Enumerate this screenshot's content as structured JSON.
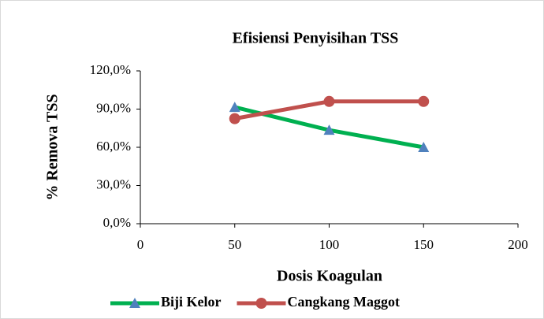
{
  "chart_data": {
    "type": "line",
    "title": "Efisiensi Penyisihan TSS",
    "xlabel": "Dosis Koagulan",
    "ylabel": "% Remova TSS",
    "x": [
      50,
      100,
      150
    ],
    "series": [
      {
        "name": "Biji Kelor",
        "color": "#00b050",
        "marker": "triangle",
        "marker_color": "#4f81bd",
        "values": [
          91.5,
          73.5,
          60
        ]
      },
      {
        "name": "Cangkang Maggot",
        "color": "#c0504d",
        "marker": "circle",
        "marker_color": "#c0504d",
        "values": [
          82.5,
          96,
          96
        ]
      }
    ],
    "xlim": [
      0,
      200
    ],
    "xticks": [
      0,
      50,
      100,
      150,
      200
    ],
    "ylim": [
      0,
      120
    ],
    "yticks": [
      {
        "value": 0,
        "label": "0,0%"
      },
      {
        "value": 30,
        "label": "30,0%"
      },
      {
        "value": 60,
        "label": "60,0%"
      },
      {
        "value": 90,
        "label": "90,0%"
      },
      {
        "value": 120,
        "label": "120,0%"
      }
    ],
    "grid": false,
    "legend": "bottom"
  }
}
